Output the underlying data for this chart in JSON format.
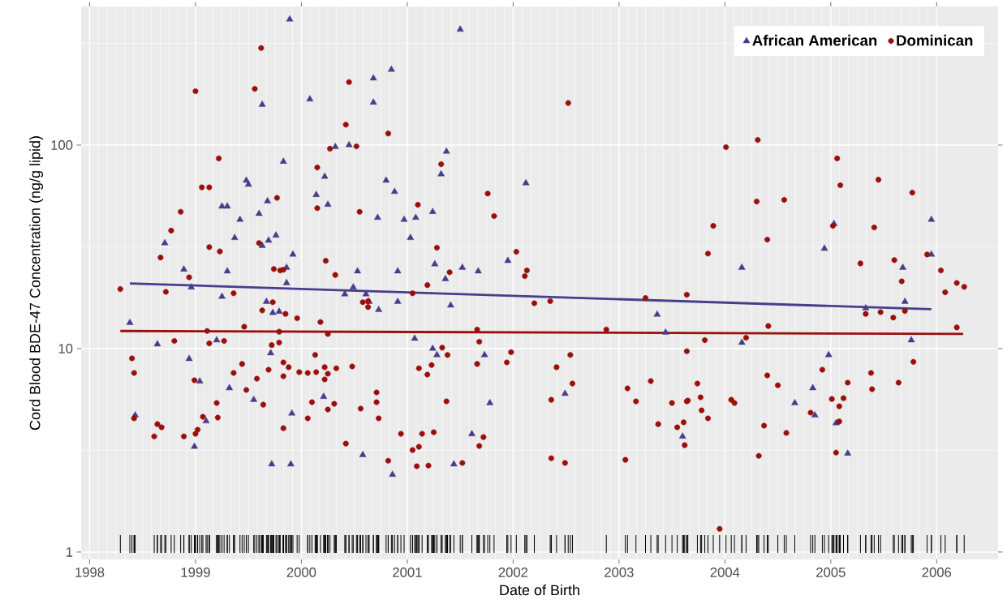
{
  "chart_data": {
    "type": "scatter",
    "xlabel": "Date of Birth",
    "ylabel": "Cord Blood BDE-47 Concentration (ng/g lipid)",
    "log": "y",
    "grid": true,
    "legend": "top right",
    "xlim": [
      1997.92,
      2006.58
    ],
    "ylim": [
      0.92,
      480
    ],
    "xticks": [
      1998,
      1999,
      2000,
      2001,
      2002,
      2003,
      2004,
      2005,
      2006
    ],
    "yticks": [
      1,
      10,
      100
    ],
    "series": [
      {
        "name": "African American",
        "type": "scatter",
        "marker": "triangle",
        "color": "#483d8b",
        "x": [
          1998.38,
          1998.64,
          1998.43,
          1998.71,
          1998.89,
          1998.94,
          1998.96,
          1998.99,
          1999.04,
          1999.1,
          1999.2,
          1999.25,
          1999.3,
          1999.3,
          1999.25,
          1999.32,
          1999.37,
          1999.42,
          1999.48,
          1999.5,
          1999.55,
          1999.6,
          1999.63,
          1999.63,
          1999.69,
          1999.68,
          1999.67,
          1999.71,
          1999.72,
          1999.73,
          1999.76,
          1999.79,
          1999.83,
          1999.86,
          1999.86,
          1999.89,
          1999.9,
          1999.91,
          1999.92,
          2000.08,
          2000.14,
          2000.22,
          2000.25,
          2000.21,
          2000.32,
          2000.45,
          2000.41,
          2000.49,
          2000.53,
          2000.58,
          2000.61,
          2000.64,
          2000.68,
          2000.68,
          2000.72,
          2000.73,
          2000.8,
          2000.85,
          2000.86,
          2000.88,
          2000.91,
          2000.91,
          2000.97,
          2001.03,
          2001.07,
          2001.08,
          2001.24,
          2001.26,
          2001.24,
          2001.28,
          2001.32,
          2001.37,
          2001.36,
          2001.41,
          2001.44,
          2001.5,
          2001.52,
          2001.61,
          2001.73,
          2001.67,
          2001.78,
          2001.95,
          2002.12,
          2002.49,
          2003.36,
          2003.44,
          2003.6,
          2004.16,
          2004.16,
          2004.66,
          2004.83,
          2004.85,
          2004.94,
          2004.98,
          2005.03,
          2005.05,
          2005.16,
          2005.33,
          2005.68,
          2005.7,
          2005.76,
          2005.95,
          2005.95
        ],
        "values": [
          13.4,
          10.5,
          4.7,
          33,
          24.5,
          8.9,
          20,
          3.3,
          6.9,
          4.4,
          11,
          50,
          50,
          24,
          18,
          6.4,
          35,
          43,
          67,
          64,
          5.6,
          46,
          158,
          32,
          34,
          53,
          17,
          9.5,
          2.7,
          15,
          36,
          15.2,
          83,
          25,
          21,
          415,
          2.7,
          4.8,
          29,
          168,
          57,
          70,
          51,
          5.8,
          98,
          100,
          18.5,
          20,
          24,
          3.0,
          18.5,
          17,
          213,
          162,
          44,
          15.5,
          67,
          235,
          2.4,
          59,
          24,
          17,
          43,
          35,
          11.2,
          44,
          47,
          26,
          10,
          9.3,
          72,
          93,
          22,
          16.3,
          2.7,
          370,
          25,
          3.8,
          9.3,
          24,
          5.4,
          27,
          65,
          6.0,
          14.7,
          12.0,
          3.7,
          25,
          10.7,
          5.4,
          6.4,
          4.7,
          31,
          9.3,
          41,
          4.3,
          3.05,
          15.8,
          25,
          17,
          11,
          43,
          29
        ]
      },
      {
        "name": "Dominican",
        "type": "scatter",
        "marker": "circle",
        "color": "#9b0f0a",
        "x": [
          1999.62,
          1999.0,
          1999.56,
          2000.45,
          2000.42,
          2000.82,
          2000.27,
          2000.52,
          1999.22,
          2000.15,
          1999.06,
          1999.13,
          1999.77,
          1998.86,
          2000.15,
          2000.55,
          1998.77,
          1999.13,
          1999.23,
          1998.67,
          1999.6,
          2000.23,
          2000.32,
          1999.74,
          1999.8,
          1999.83,
          1998.94,
          2002.52,
          2001.32,
          2001.76,
          2001.1,
          2001.82,
          2001.28,
          2002.03,
          2002.13,
          2002.11,
          2001.4,
          2004.01,
          2004.31,
          2005.06,
          2005.09,
          2005.45,
          2005.77,
          2004.3,
          2004.56,
          2003.89,
          2004.4,
          2005.02,
          2005.41,
          2003.84,
          2005.28,
          2005.6,
          2005.91,
          2006.04,
          2005.67,
          2006.19,
          1998.29,
          1998.72,
          1999.36,
          1999.73,
          1999.63,
          1999.85,
          1999.96,
          2000.18,
          2000.58,
          2000.63,
          2000.63,
          1999.46,
          1999.11,
          1999.79,
          2000.25,
          1998.8,
          1999.13,
          1999.27,
          1999.72,
          1999.79,
          1998.4,
          1998.42,
          2000.13,
          1999.44,
          1999.83,
          1999.88,
          1999.69,
          1999.36,
          1999.83,
          1999.98,
          2000.06,
          2000.14,
          2000.22,
          2000.25,
          2000.22,
          2000.33,
          2000.48,
          1998.99,
          1999.58,
          1999.48,
          1999.64,
          1999.2,
          1999.21,
          2000.1,
          2000.31,
          2000.25,
          2000.71,
          2000.71,
          2000.73,
          2000.56,
          2000.06,
          1999.07,
          1998.42,
          1998.64,
          1998.68,
          1998.61,
          1998.89,
          1999.0,
          1999.02,
          1999.83,
          2000.42,
          2000.82,
          2001.19,
          2001.05,
          2002.2,
          2002.35,
          2003.25,
          2003.64,
          2001.66,
          2002.88,
          2001.68,
          2001.33,
          2001.38,
          2001.98,
          2002.54,
          2003.64,
          2001.11,
          2001.23,
          2001.19,
          2001.66,
          2001.94,
          2002.41,
          2002.56,
          2001.37,
          2002.36,
          2003.08,
          2003.3,
          2003.16,
          2003.5,
          2003.64,
          2000.94,
          2001.14,
          2001.25,
          2001.72,
          2001.68,
          2003.37,
          2003.55,
          2003.61,
          2003.62,
          2001.05,
          2001.11,
          2001.09,
          2001.2,
          2001.52,
          2002.36,
          2002.49,
          2003.06,
          2006.08,
          2006.26,
          2005.33,
          2005.47,
          2005.59,
          2005.7,
          2004.41,
          2006.19,
          2003.81,
          2004.2,
          2005.78,
          2004.92,
          2004.4,
          2005.38,
          2004.5,
          2003.74,
          2005.39,
          2005.64,
          2005.16,
          2003.65,
          2003.77,
          2004.06,
          2004.09,
          2003.78,
          2003.84,
          2005.01,
          2005.12,
          2005.08,
          2004.81,
          2005.08,
          2004.37,
          2004.58,
          2004.32,
          2005.05,
          2003.95
        ],
        "values": [
          300,
          184,
          189,
          204,
          126,
          114,
          96,
          98.6,
          86,
          77.6,
          62,
          62,
          55,
          47,
          49,
          47,
          38,
          31.5,
          30,
          28,
          33,
          27,
          23,
          24.6,
          24.2,
          24.4,
          22.4,
          161,
          80.5,
          57.8,
          50.9,
          44.8,
          31.3,
          29.9,
          24.2,
          22.7,
          23.7,
          97.7,
          106,
          86,
          63.5,
          67.6,
          58.4,
          52.8,
          53.8,
          40.1,
          34.3,
          40.1,
          39.4,
          29.3,
          26.2,
          27.2,
          29.0,
          24.2,
          21.4,
          21.0,
          19.6,
          19.0,
          18.7,
          16.9,
          15.4,
          14.8,
          14.1,
          13.5,
          16.9,
          17.1,
          16.0,
          12.8,
          12.2,
          12.1,
          11.8,
          10.9,
          10.6,
          10.9,
          10.4,
          10.7,
          8.95,
          7.59,
          9.3,
          8.4,
          8.55,
          8.1,
          7.87,
          7.59,
          7.31,
          7.66,
          7.59,
          7.66,
          8.1,
          7.52,
          7.05,
          8.0,
          8.17,
          6.99,
          7.11,
          6.26,
          5.3,
          5.4,
          4.58,
          5.45,
          5.35,
          5.02,
          6.09,
          5.45,
          4.54,
          5.07,
          4.54,
          4.62,
          4.54,
          4.25,
          4.1,
          3.7,
          3.7,
          3.81,
          3.99,
          4.06,
          3.41,
          2.81,
          20.5,
          18.7,
          16.7,
          17.1,
          17.7,
          18.4,
          12.4,
          12.4,
          10.8,
          10.1,
          9.3,
          9.6,
          9.3,
          9.7,
          8.0,
          8.3,
          7.45,
          8.4,
          8.55,
          8.1,
          6.73,
          5.5,
          5.6,
          6.37,
          6.92,
          5.5,
          5.4,
          5.5,
          3.81,
          3.81,
          3.88,
          3.67,
          3.32,
          4.25,
          4.1,
          4.34,
          3.35,
          3.17,
          3.29,
          2.64,
          2.66,
          2.74,
          2.89,
          2.74,
          2.84,
          18.9,
          20.1,
          14.8,
          15.1,
          14.2,
          15.3,
          12.9,
          12.7,
          11.0,
          11.3,
          8.6,
          7.87,
          7.38,
          7.59,
          6.6,
          6.73,
          6.31,
          6.8,
          6.8,
          5.55,
          5.76,
          5.6,
          5.4,
          4.97,
          4.54,
          5.65,
          5.7,
          5.2,
          4.84,
          4.38,
          4.18,
          3.85,
          2.97,
          3.08,
          1.3
        ]
      },
      {
        "type": "line",
        "color": "#483d8b",
        "x": [
          1998.38,
          2005.95
        ],
        "values": [
          20.9,
          15.6
        ]
      },
      {
        "type": "line",
        "color": "#9b0f0a",
        "x": [
          1998.29,
          2006.25
        ],
        "values": [
          12.2,
          11.8
        ]
      }
    ]
  }
}
